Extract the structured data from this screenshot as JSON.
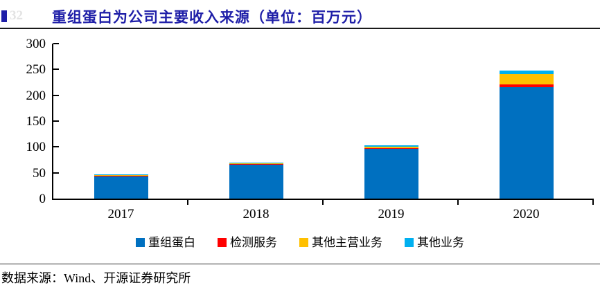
{
  "figure": {
    "label_number": "32",
    "title": "重组蛋白为公司主要收入来源（单位：百万元）",
    "title_color": "#1F1FA8"
  },
  "chart_data": {
    "type": "bar",
    "stacked": true,
    "title": "重组蛋白为公司主要收入来源（单位：百万元）",
    "xlabel": "",
    "ylabel": "",
    "unit": "百万元",
    "categories": [
      "2017",
      "2018",
      "2019",
      "2020"
    ],
    "series": [
      {
        "name": "重组蛋白",
        "color": "#0070C0",
        "values": [
          44.5,
          67,
          97,
          215
        ]
      },
      {
        "name": "检测服务",
        "color": "#FF0000",
        "values": [
          0.3,
          0.4,
          1.3,
          6.5
        ]
      },
      {
        "name": "其他主营业务",
        "color": "#FFC000",
        "values": [
          1.5,
          1.3,
          2.0,
          19
        ]
      },
      {
        "name": "其他业务",
        "color": "#00B0F0",
        "values": [
          0.3,
          0.9,
          2.5,
          7
        ]
      }
    ],
    "totals": [
      46.6,
      69.6,
      102.8,
      247.5
    ],
    "ylim": [
      0,
      300
    ],
    "yticks": [
      0,
      50,
      100,
      150,
      200,
      250,
      300
    ],
    "grid": false,
    "legend_position": "bottom"
  },
  "source": {
    "text": "数据来源：Wind、开源证券研究所"
  }
}
